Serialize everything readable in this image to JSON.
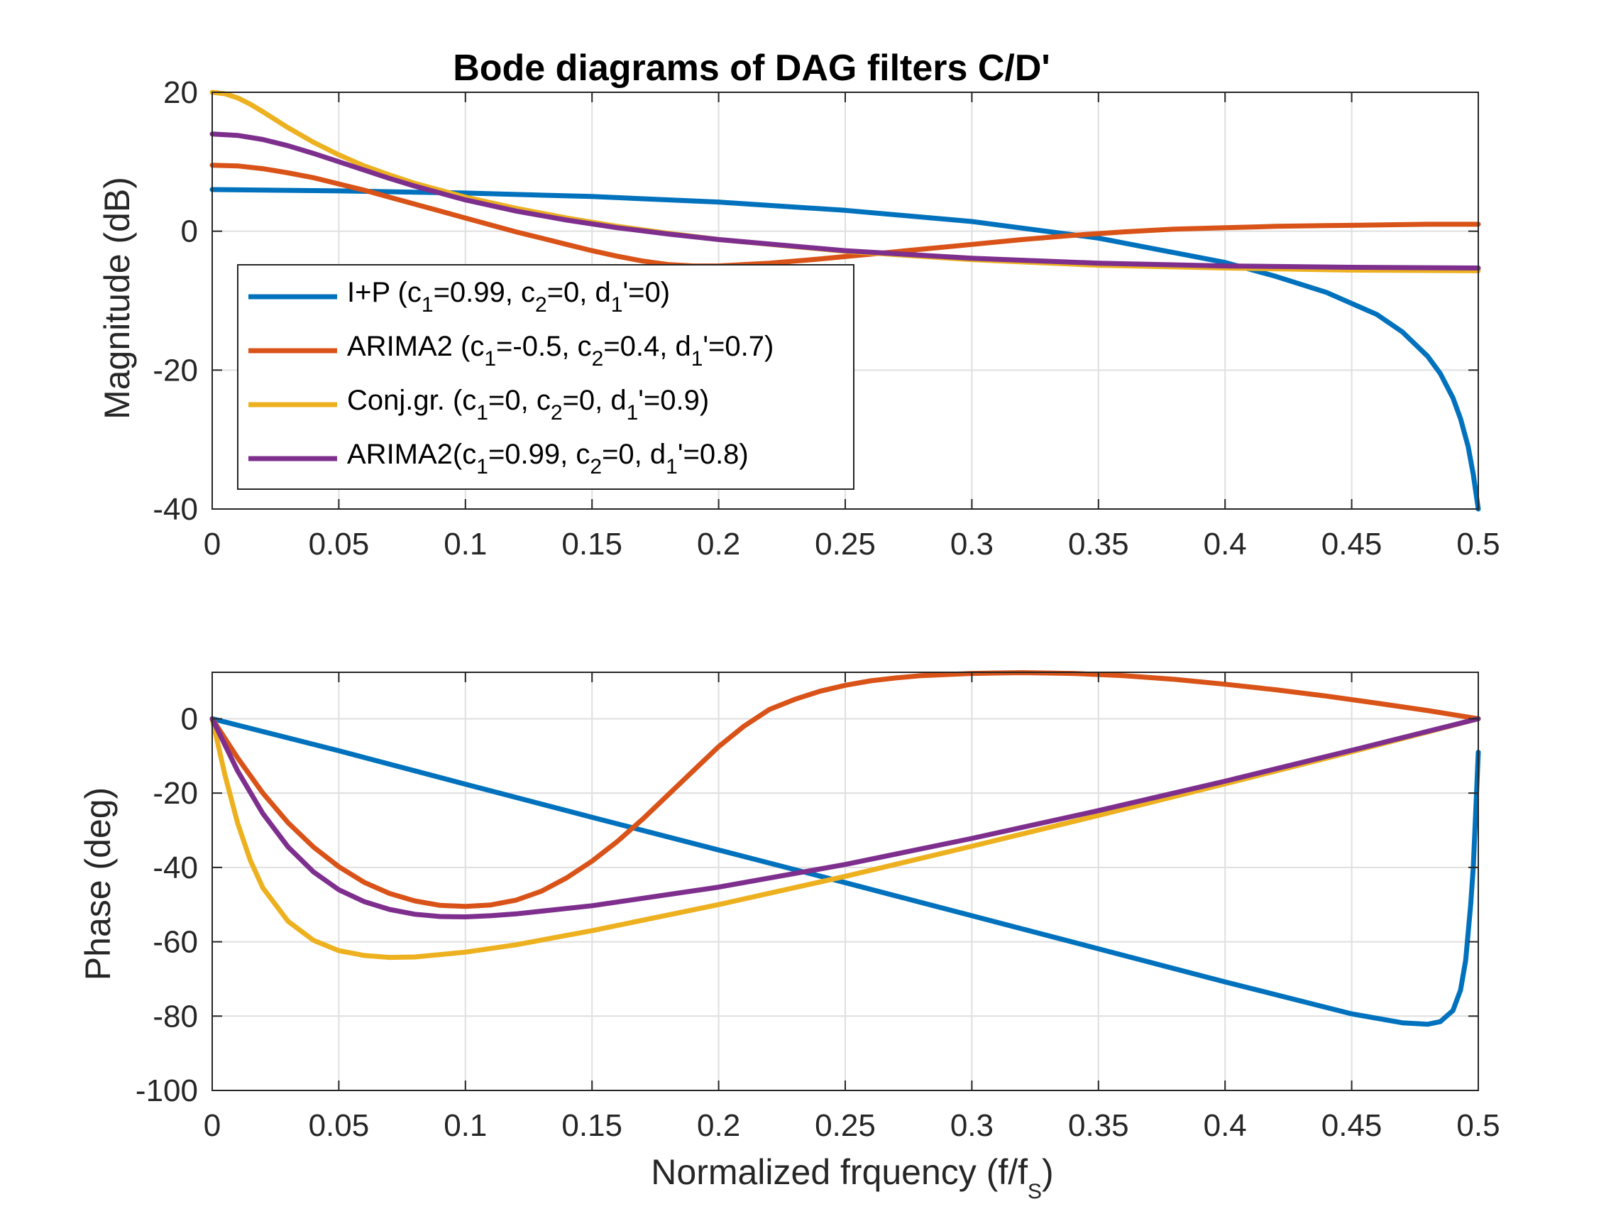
{
  "chart_data": [
    {
      "type": "line",
      "title": "Bode diagrams of DAG filters C/D'",
      "xlabel": "",
      "ylabel": "Magnitude (dB)",
      "xlim": [
        0,
        0.5
      ],
      "ylim": [
        -40,
        20
      ],
      "xticks": [
        "0",
        "0.05",
        "0.1",
        "0.15",
        "0.2",
        "0.25",
        "0.3",
        "0.35",
        "0.4",
        "0.45",
        "0.5"
      ],
      "yticks": [
        "-40",
        "-20",
        "0",
        "20"
      ],
      "grid": true,
      "legend_position": "left",
      "series": [
        {
          "name": "I+P",
          "legend": {
            "pre": "I+P (c",
            "s1": "1",
            "m1": "=0.99, c",
            "s2": "2",
            "m2": "=0, d",
            "s3": "1",
            "post": "'=0)"
          },
          "color": "#0072BD",
          "x": [
            0,
            0.05,
            0.1,
            0.15,
            0.2,
            0.25,
            0.3,
            0.35,
            0.4,
            0.42,
            0.44,
            0.46,
            0.47,
            0.48,
            0.485,
            0.49,
            0.493,
            0.496,
            0.498,
            0.5
          ],
          "y": [
            6,
            5.8,
            5.5,
            5,
            4.2,
            3,
            1.4,
            -1,
            -4.5,
            -6.5,
            -8.8,
            -12,
            -14.5,
            -18,
            -20.5,
            -24,
            -27,
            -31,
            -35,
            -40
          ]
        },
        {
          "name": "ARIMA2",
          "legend": {
            "pre": "ARIMA2 (c",
            "s1": "1",
            "m1": "=-0.5, c",
            "s2": "2",
            "m2": "=0.4, d",
            "s3": "1",
            "post": "'=0.7)"
          },
          "color": "#D95319",
          "x": [
            0,
            0.01,
            0.02,
            0.03,
            0.04,
            0.05,
            0.06,
            0.07,
            0.08,
            0.09,
            0.1,
            0.11,
            0.12,
            0.13,
            0.14,
            0.15,
            0.16,
            0.17,
            0.18,
            0.19,
            0.2,
            0.22,
            0.24,
            0.26,
            0.28,
            0.3,
            0.32,
            0.34,
            0.36,
            0.38,
            0.4,
            0.42,
            0.44,
            0.46,
            0.48,
            0.5
          ],
          "y": [
            9.5,
            9.4,
            9,
            8.4,
            7.7,
            6.8,
            5.9,
            4.9,
            3.9,
            2.9,
            1.9,
            0.9,
            -0.1,
            -1,
            -1.9,
            -2.8,
            -3.6,
            -4.3,
            -4.8,
            -5,
            -5,
            -4.6,
            -4,
            -3.3,
            -2.6,
            -1.9,
            -1.2,
            -0.6,
            -0.1,
            0.3,
            0.5,
            0.7,
            0.8,
            0.9,
            1,
            1
          ]
        },
        {
          "name": "Conj.gr.",
          "legend": {
            "pre": "Conj.gr. (c",
            "s1": "1",
            "m1": "=0, c",
            "s2": "2",
            "m2": "=0, d",
            "s3": "1",
            "post": "'=0.9)"
          },
          "color": "#EDB120",
          "x": [
            0,
            0.005,
            0.01,
            0.015,
            0.02,
            0.03,
            0.04,
            0.05,
            0.06,
            0.07,
            0.08,
            0.09,
            0.1,
            0.12,
            0.14,
            0.16,
            0.18,
            0.2,
            0.25,
            0.3,
            0.35,
            0.4,
            0.45,
            0.5
          ],
          "y": [
            20,
            19.8,
            19.2,
            18.3,
            17.2,
            14.9,
            12.8,
            11,
            9.4,
            8.1,
            6.9,
            5.9,
            4.9,
            3.3,
            1.9,
            0.7,
            -0.3,
            -1.2,
            -2.9,
            -4.1,
            -4.9,
            -5.3,
            -5.6,
            -5.7
          ]
        },
        {
          "name": "ARIMA2",
          "legend": {
            "pre": "ARIMA2(c",
            "s1": "1",
            "m1": "=0.99, c",
            "s2": "2",
            "m2": "=0, d",
            "s3": "1",
            "post": "'=0.8)"
          },
          "color": "#7E2F8E",
          "x": [
            0,
            0.01,
            0.02,
            0.03,
            0.04,
            0.05,
            0.06,
            0.07,
            0.08,
            0.09,
            0.1,
            0.12,
            0.14,
            0.16,
            0.18,
            0.2,
            0.25,
            0.3,
            0.35,
            0.4,
            0.45,
            0.5
          ],
          "y": [
            14,
            13.8,
            13.2,
            12.3,
            11.2,
            10,
            8.8,
            7.6,
            6.5,
            5.5,
            4.5,
            2.9,
            1.6,
            0.5,
            -0.4,
            -1.2,
            -2.8,
            -3.9,
            -4.6,
            -5,
            -5.2,
            -5.3
          ]
        }
      ]
    },
    {
      "type": "line",
      "title": "",
      "xlabel": "Normalized frquency (f/f",
      "xlabel_sub": "S",
      "xlabel_post": ")",
      "ylabel": "Phase (deg)",
      "xlim": [
        0,
        0.5
      ],
      "ylim": [
        -100,
        12.5
      ],
      "xticks": [
        "0",
        "0.05",
        "0.1",
        "0.15",
        "0.2",
        "0.25",
        "0.3",
        "0.35",
        "0.4",
        "0.45",
        "0.5"
      ],
      "yticks": [
        "-100",
        "-80",
        "-60",
        "-40",
        "-20",
        "0"
      ],
      "grid": true,
      "series": [
        {
          "name": "I+P",
          "color": "#0072BD",
          "x": [
            0,
            0.05,
            0.1,
            0.15,
            0.2,
            0.25,
            0.3,
            0.35,
            0.4,
            0.45,
            0.47,
            0.48,
            0.485,
            0.49,
            0.493,
            0.495,
            0.497,
            0.498,
            0.499,
            0.5
          ],
          "y": [
            0,
            -8.6,
            -17.6,
            -26.5,
            -35.3,
            -44.1,
            -53,
            -61.9,
            -70.8,
            -79.4,
            -81.8,
            -82.2,
            -81.5,
            -78.5,
            -73,
            -65,
            -50,
            -40,
            -25,
            -9
          ]
        },
        {
          "name": "ARIMA2",
          "color": "#D95319",
          "x": [
            0,
            0.01,
            0.02,
            0.03,
            0.04,
            0.05,
            0.06,
            0.07,
            0.08,
            0.09,
            0.1,
            0.11,
            0.12,
            0.13,
            0.14,
            0.15,
            0.16,
            0.17,
            0.18,
            0.19,
            0.2,
            0.21,
            0.22,
            0.23,
            0.24,
            0.25,
            0.26,
            0.27,
            0.28,
            0.3,
            0.32,
            0.34,
            0.36,
            0.38,
            0.4,
            0.42,
            0.44,
            0.46,
            0.48,
            0.5
          ],
          "y": [
            0,
            -10.5,
            -20,
            -28,
            -34.5,
            -39.8,
            -44,
            -47,
            -49,
            -50.2,
            -50.5,
            -50.1,
            -48.8,
            -46.4,
            -42.8,
            -38.3,
            -33,
            -27,
            -20.5,
            -14,
            -7.5,
            -2,
            2.5,
            5.2,
            7.4,
            9,
            10.2,
            11,
            11.6,
            12.2,
            12.4,
            12.2,
            11.6,
            10.6,
            9.3,
            7.8,
            6.1,
            4.2,
            2.2,
            0
          ]
        },
        {
          "name": "Conj.gr.",
          "color": "#EDB120",
          "x": [
            0,
            0.005,
            0.01,
            0.015,
            0.02,
            0.03,
            0.04,
            0.05,
            0.06,
            0.07,
            0.08,
            0.1,
            0.12,
            0.15,
            0.2,
            0.25,
            0.3,
            0.35,
            0.4,
            0.45,
            0.5
          ],
          "y": [
            0,
            -15,
            -28,
            -38,
            -45.5,
            -54.5,
            -59.6,
            -62.4,
            -63.7,
            -64.2,
            -64.1,
            -62.8,
            -60.8,
            -57,
            -50,
            -42.4,
            -34.3,
            -26,
            -17.5,
            -8.9,
            0
          ]
        },
        {
          "name": "ARIMA2",
          "color": "#7E2F8E",
          "x": [
            0,
            0.01,
            0.02,
            0.03,
            0.04,
            0.05,
            0.06,
            0.07,
            0.08,
            0.09,
            0.1,
            0.11,
            0.12,
            0.15,
            0.2,
            0.25,
            0.3,
            0.35,
            0.4,
            0.45,
            0.5
          ],
          "y": [
            0,
            -14,
            -25.5,
            -34.5,
            -41.2,
            -46,
            -49.2,
            -51.3,
            -52.6,
            -53.2,
            -53.3,
            -53,
            -52.5,
            -50.3,
            -45.3,
            -39.2,
            -32.2,
            -24.7,
            -16.8,
            -8.5,
            0
          ]
        }
      ]
    }
  ]
}
